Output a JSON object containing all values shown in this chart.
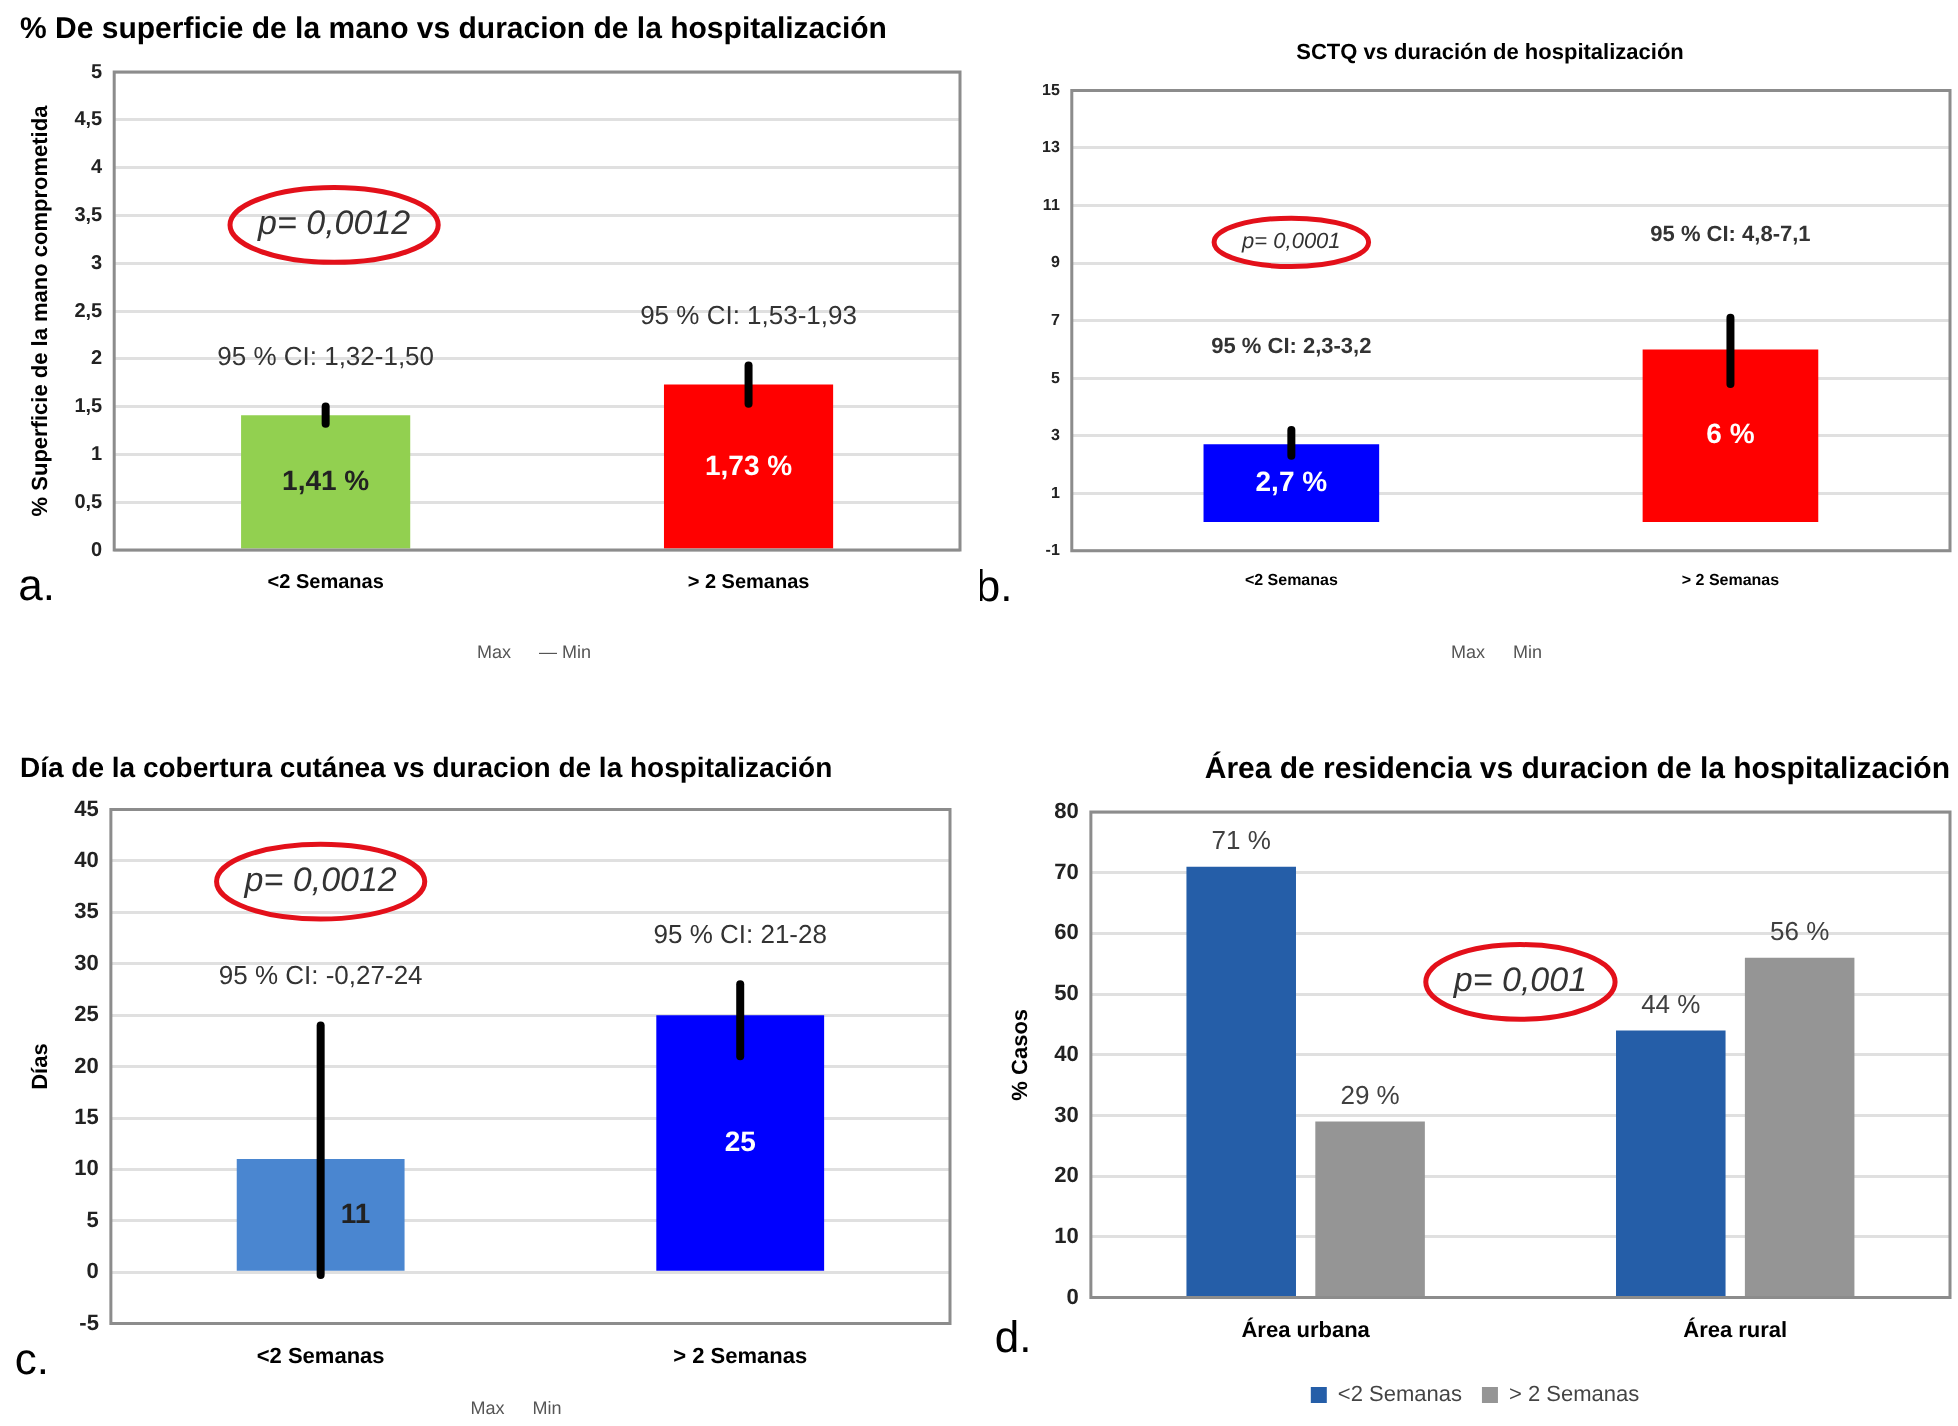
{
  "chart_data": [
    {
      "type": "bar",
      "title": "% De superficie de la mano vs duracion de la hospitalización",
      "ylabel": "% Superficie de la mano comprometida",
      "categories": [
        "<2 Semanas",
        "> 2 Semanas"
      ],
      "values": [
        1.41,
        1.73
      ],
      "colors": [
        "#92d050",
        "#ff0000"
      ],
      "errors": [
        [
          1.32,
          1.5
        ],
        [
          1.53,
          1.93
        ]
      ],
      "value_labels": [
        "1,41 %",
        "1,73 %"
      ],
      "ylim": [
        0,
        5
      ],
      "yticks": [
        0,
        {
          "value": 0.5,
          "label": "0,5"
        },
        1,
        {
          "value": 1.5,
          "label": "1,5"
        },
        2,
        {
          "value": 2.5,
          "label": "2,5"
        },
        3,
        {
          "value": 3.5,
          "label": "3,5"
        },
        4,
        {
          "value": 4.5,
          "label": "4,5"
        },
        5
      ],
      "grid": "y",
      "annotations": [
        "95 % CI: 1,32-1,50",
        "95 % CI: 1,53-1,93",
        "p= 0,0012",
        "a.",
        "Max",
        "— Min"
      ]
    },
    {
      "type": "bar",
      "title": "SCTQ vs duración de hospitalización",
      "categories": [
        "<2 Semanas",
        "> 2 Semanas"
      ],
      "values": [
        2.7,
        6
      ],
      "colors": [
        "#0000ff",
        "#ff0000"
      ],
      "errors": [
        [
          2.3,
          3.2
        ],
        [
          4.8,
          7.1
        ]
      ],
      "value_labels": [
        "2,7 %",
        "6 %"
      ],
      "ylim": [
        -1,
        15
      ],
      "yticks": [
        -1,
        1,
        3,
        5,
        7,
        9,
        11,
        13,
        15
      ],
      "grid": "y",
      "annotations": [
        "95 % CI: 2,3-3,2",
        "95 % CI: 4,8-7,1",
        "p= 0,0001",
        "b.",
        "Max",
        "Min"
      ]
    },
    {
      "type": "bar",
      "title": "Día de la cobertura cutánea vs duracion de la hospitalización",
      "ylabel": "Días",
      "categories": [
        "<2 Semanas",
        "> 2 Semanas"
      ],
      "values": [
        11,
        25
      ],
      "colors": [
        "#4a86d0",
        "#0000ff"
      ],
      "errors": [
        [
          -0.27,
          24
        ],
        [
          21,
          28
        ]
      ],
      "value_labels": [
        "11",
        "25"
      ],
      "ylim": [
        -5,
        45
      ],
      "yticks": [
        -5,
        0,
        5,
        10,
        15,
        20,
        25,
        30,
        35,
        40,
        45
      ],
      "grid": "y",
      "annotations": [
        "95 % CI: -0,27-24",
        "95 % CI: 21-28",
        "p= 0,0012",
        "c.",
        "Max",
        "Min"
      ]
    },
    {
      "type": "bar",
      "title": "Área de residencia vs duracion de la hospitalización",
      "ylabel": "% Casos",
      "categories": [
        "Área urbana",
        "Área rural"
      ],
      "series": [
        {
          "name": "<2 Semanas",
          "color": "#255ea8",
          "values": [
            71,
            44
          ],
          "value_labels": [
            "71 %",
            "44 %"
          ]
        },
        {
          "name": "> 2 Semanas",
          "color": "#959595",
          "values": [
            29,
            56
          ],
          "value_labels": [
            "29 %",
            "56 %"
          ]
        }
      ],
      "ylim": [
        0,
        80
      ],
      "yticks": [
        0,
        10,
        20,
        30,
        40,
        50,
        60,
        70,
        80
      ],
      "grid": "y",
      "legend": "bottom",
      "annotations": [
        "p= 0,001",
        "d."
      ]
    }
  ]
}
